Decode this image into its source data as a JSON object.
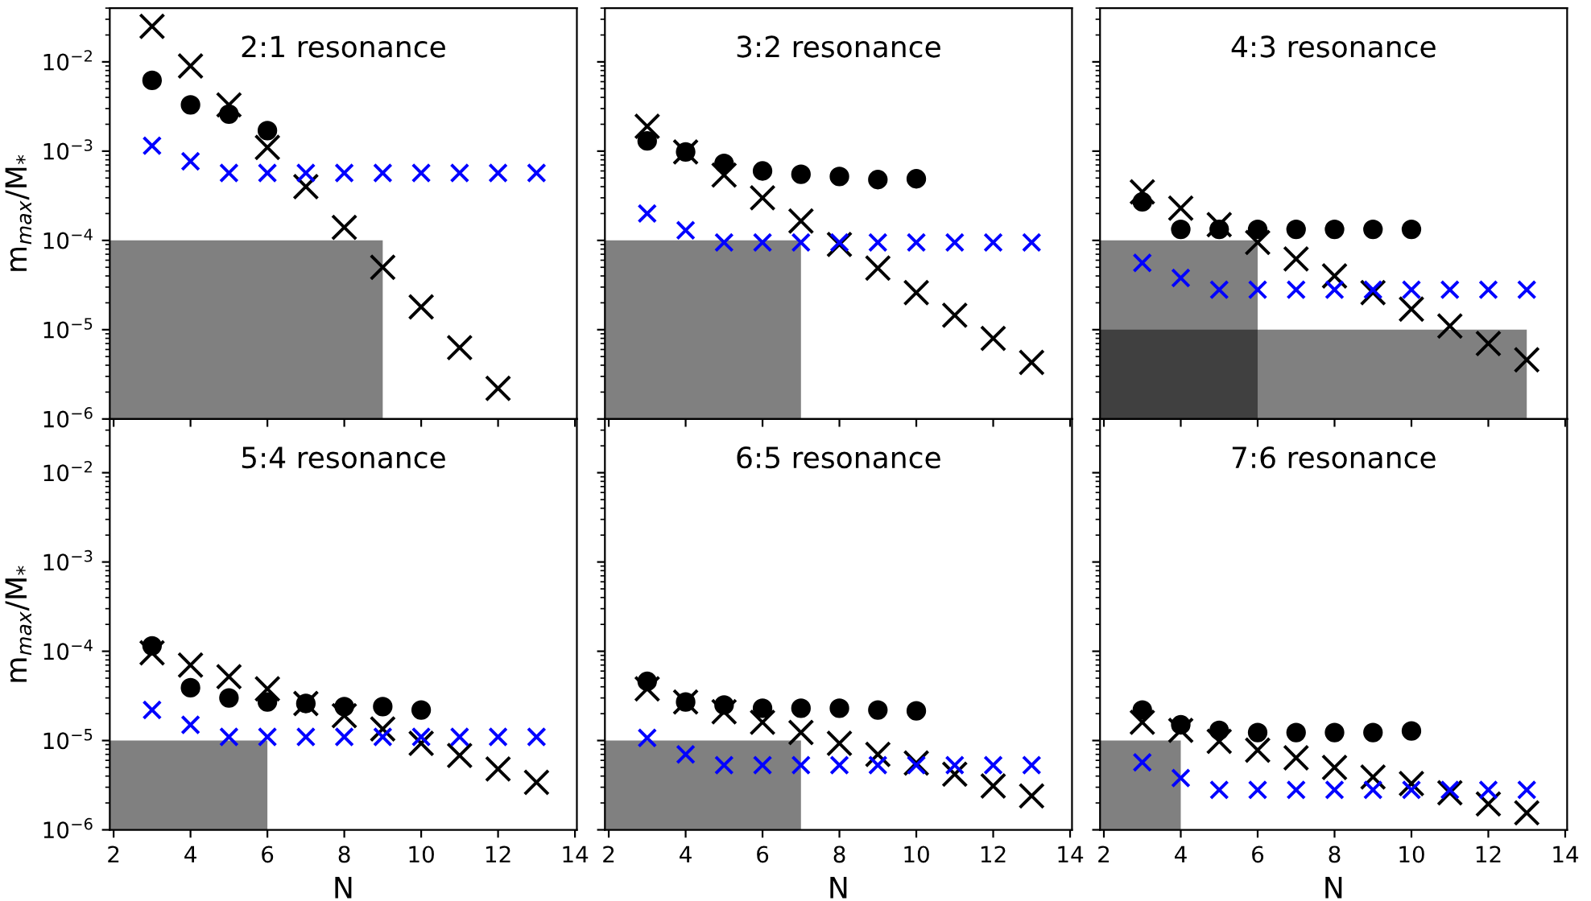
{
  "chart_data": [
    {
      "type": "scatter",
      "title": "2:1 resonance",
      "ylabel": "m$_{max}$/M$_{*}$",
      "log": "y",
      "xlim": [
        1.9,
        14.05
      ],
      "ylim": [
        1e-06,
        0.04
      ],
      "xticks": [
        {
          "value": 2,
          "label": null
        },
        {
          "value": 4,
          "label": null
        },
        {
          "value": 6,
          "label": null
        },
        {
          "value": 8,
          "label": null
        },
        {
          "value": 10,
          "label": null
        },
        {
          "value": 12,
          "label": null
        },
        {
          "value": 14,
          "label": null
        }
      ],
      "yticks": [
        {
          "value": 1e-06,
          "label": "10$^{−6}$"
        },
        {
          "value": 1e-05,
          "label": "10$^{−5}$"
        },
        {
          "value": 0.0001,
          "label": "10$^{−4}$"
        },
        {
          "value": 0.001,
          "label": "10$^{−3}$"
        },
        {
          "value": 0.01,
          "label": "10$^{−2}$"
        }
      ],
      "tick_labels": "y",
      "grid": false,
      "legend": false,
      "series": [
        {
          "type": "area",
          "color": "#808080",
          "x": [
            1.9,
            9
          ],
          "values": [
            0.0001,
            0.0001
          ]
        },
        {
          "type": "scatter",
          "marker": "circle",
          "color": "#000000",
          "x": [
            3,
            4,
            5,
            6
          ],
          "values": [
            0.0062,
            0.0033,
            0.0026,
            0.0017
          ]
        },
        {
          "type": "scatter",
          "marker": "cross",
          "color": "#000000",
          "x": [
            3,
            4,
            5,
            6,
            7,
            8,
            9,
            10,
            11,
            12
          ],
          "values": [
            0.025,
            0.009,
            0.0033,
            0.0011,
            0.0004,
            0.00014,
            5e-05,
            1.8e-05,
            6.3e-06,
            2.2e-06
          ]
        },
        {
          "type": "scatter",
          "marker": "cross",
          "color": "#0000ff",
          "x": [
            3,
            4,
            5,
            6,
            7,
            8,
            9,
            10,
            11,
            12,
            13
          ],
          "values": [
            0.00115,
            0.00077,
            0.00057,
            0.00057,
            0.00057,
            0.00057,
            0.00057,
            0.00057,
            0.00057,
            0.00057,
            0.00057
          ]
        }
      ]
    },
    {
      "type": "scatter",
      "title": "3:2 resonance",
      "log": "y",
      "xlim": [
        1.9,
        14.05
      ],
      "ylim": [
        1e-06,
        0.04
      ],
      "xticks": [
        {
          "value": 2,
          "label": null
        },
        {
          "value": 4,
          "label": null
        },
        {
          "value": 6,
          "label": null
        },
        {
          "value": 8,
          "label": null
        },
        {
          "value": 10,
          "label": null
        },
        {
          "value": 12,
          "label": null
        },
        {
          "value": 14,
          "label": null
        }
      ],
      "yticks": [
        {
          "value": 1e-06,
          "label": null
        },
        {
          "value": 1e-05,
          "label": null
        },
        {
          "value": 0.0001,
          "label": null
        },
        {
          "value": 0.001,
          "label": null
        },
        {
          "value": 0.01,
          "label": null
        }
      ],
      "tick_labels": false,
      "grid": false,
      "legend": false,
      "series": [
        {
          "type": "area",
          "color": "#808080",
          "x": [
            1.9,
            7
          ],
          "values": [
            0.0001,
            0.0001
          ]
        },
        {
          "type": "scatter",
          "marker": "circle",
          "color": "#000000",
          "x": [
            3,
            4,
            5,
            6,
            7,
            8,
            9,
            10
          ],
          "values": [
            0.0013,
            0.00098,
            0.00073,
            0.0006,
            0.00055,
            0.00052,
            0.00048,
            0.00049
          ]
        },
        {
          "type": "scatter",
          "marker": "cross",
          "color": "#000000",
          "x": [
            3,
            4,
            5,
            6,
            7,
            8,
            9,
            10,
            11,
            12,
            13
          ],
          "values": [
            0.0019,
            0.00098,
            0.00054,
            0.0003,
            0.000165,
            9e-05,
            4.9e-05,
            2.6e-05,
            1.45e-05,
            8e-06,
            4.3e-06
          ]
        },
        {
          "type": "scatter",
          "marker": "cross",
          "color": "#0000ff",
          "x": [
            3,
            4,
            5,
            6,
            7,
            8,
            9,
            10,
            11,
            12,
            13
          ],
          "values": [
            0.0002,
            0.00013,
            9.5e-05,
            9.5e-05,
            9.5e-05,
            9.5e-05,
            9.5e-05,
            9.5e-05,
            9.5e-05,
            9.5e-05,
            9.5e-05
          ]
        }
      ]
    },
    {
      "type": "scatter",
      "title": "4:3 resonance",
      "log": "y",
      "xlim": [
        1.9,
        14.05
      ],
      "ylim": [
        1e-06,
        0.04
      ],
      "xticks": [
        {
          "value": 2,
          "label": null
        },
        {
          "value": 4,
          "label": null
        },
        {
          "value": 6,
          "label": null
        },
        {
          "value": 8,
          "label": null
        },
        {
          "value": 10,
          "label": null
        },
        {
          "value": 12,
          "label": null
        },
        {
          "value": 14,
          "label": null
        }
      ],
      "yticks": [
        {
          "value": 1e-06,
          "label": null
        },
        {
          "value": 1e-05,
          "label": null
        },
        {
          "value": 0.0001,
          "label": null
        },
        {
          "value": 0.001,
          "label": null
        },
        {
          "value": 0.01,
          "label": null
        }
      ],
      "tick_labels": false,
      "grid": false,
      "legend": false,
      "series": [
        {
          "type": "area",
          "color": "#808080",
          "x": [
            1.9,
            6,
            6,
            13
          ],
          "values": [
            0.0001,
            0.0001,
            1e-05,
            1e-05
          ]
        },
        {
          "type": "area",
          "color": "#404040",
          "x": [
            1.9,
            6
          ],
          "values": [
            1e-05,
            1e-05
          ]
        },
        {
          "type": "scatter",
          "marker": "circle",
          "color": "#000000",
          "x": [
            3,
            4,
            5,
            6,
            7,
            8,
            9,
            10
          ],
          "values": [
            0.00027,
            0.000133,
            0.000133,
            0.000133,
            0.000133,
            0.000133,
            0.000133,
            0.000133
          ]
        },
        {
          "type": "scatter",
          "marker": "cross",
          "color": "#000000",
          "x": [
            3,
            4,
            5,
            6,
            7,
            8,
            9,
            10,
            11,
            12,
            13
          ],
          "values": [
            0.00035,
            0.00023,
            0.00015,
            9.5e-05,
            6.2e-05,
            4e-05,
            2.6e-05,
            1.7e-05,
            1.1e-05,
            7e-06,
            4.6e-06
          ]
        },
        {
          "type": "scatter",
          "marker": "cross",
          "color": "#0000ff",
          "x": [
            3,
            4,
            5,
            6,
            7,
            8,
            9,
            10,
            11,
            12,
            13
          ],
          "values": [
            5.6e-05,
            3.8e-05,
            2.8e-05,
            2.8e-05,
            2.8e-05,
            2.8e-05,
            2.8e-05,
            2.8e-05,
            2.8e-05,
            2.8e-05,
            2.8e-05
          ]
        }
      ]
    },
    {
      "type": "scatter",
      "title": "5:4 resonance",
      "xlabel": "N",
      "ylabel": "m$_{max}$/M$_{*}$",
      "log": "y",
      "xlim": [
        1.9,
        14.05
      ],
      "ylim": [
        1e-06,
        0.04
      ],
      "xticks": [
        2,
        4,
        6,
        8,
        10,
        12,
        14
      ],
      "yticks": [
        {
          "value": 1e-06,
          "label": "10$^{−6}$"
        },
        {
          "value": 1e-05,
          "label": "10$^{−5}$"
        },
        {
          "value": 0.0001,
          "label": "10$^{−4}$"
        },
        {
          "value": 0.001,
          "label": "10$^{−3}$"
        },
        {
          "value": 0.01,
          "label": "10$^{−2}$"
        }
      ],
      "grid": false,
      "legend": false,
      "series": [
        {
          "type": "area",
          "color": "#808080",
          "x": [
            1.9,
            6
          ],
          "values": [
            1e-05,
            1e-05
          ]
        },
        {
          "type": "scatter",
          "marker": "circle",
          "color": "#000000",
          "x": [
            3,
            4,
            5,
            6,
            7,
            8,
            9,
            10
          ],
          "values": [
            0.000115,
            3.9e-05,
            3e-05,
            2.7e-05,
            2.6e-05,
            2.4e-05,
            2.4e-05,
            2.2e-05
          ]
        },
        {
          "type": "scatter",
          "marker": "cross",
          "color": "#000000",
          "x": [
            3,
            4,
            5,
            6,
            7,
            8,
            9,
            10,
            11,
            12,
            13
          ],
          "values": [
            9.6e-05,
            7e-05,
            5.2e-05,
            3.8e-05,
            2.6e-05,
            1.9e-05,
            1.35e-05,
            9.3e-06,
            6.8e-06,
            4.8e-06,
            3.4e-06
          ]
        },
        {
          "type": "scatter",
          "marker": "cross",
          "color": "#0000ff",
          "x": [
            3,
            4,
            5,
            6,
            7,
            8,
            9,
            10,
            11,
            12,
            13
          ],
          "values": [
            2.2e-05,
            1.5e-05,
            1.1e-05,
            1.1e-05,
            1.1e-05,
            1.1e-05,
            1.1e-05,
            1.1e-05,
            1.1e-05,
            1.1e-05,
            1.1e-05
          ]
        }
      ]
    },
    {
      "type": "scatter",
      "title": "6:5 resonance",
      "xlabel": "N",
      "log": "y",
      "xlim": [
        1.9,
        14.05
      ],
      "ylim": [
        1e-06,
        0.04
      ],
      "xticks": [
        2,
        4,
        6,
        8,
        10,
        12,
        14
      ],
      "yticks": [
        {
          "value": 1e-06,
          "label": null
        },
        {
          "value": 1e-05,
          "label": null
        },
        {
          "value": 0.0001,
          "label": null
        },
        {
          "value": 0.001,
          "label": null
        },
        {
          "value": 0.01,
          "label": null
        }
      ],
      "tick_labels": "x",
      "grid": false,
      "legend": false,
      "series": [
        {
          "type": "area",
          "color": "#808080",
          "x": [
            1.9,
            7
          ],
          "values": [
            1e-05,
            1e-05
          ]
        },
        {
          "type": "scatter",
          "marker": "circle",
          "color": "#000000",
          "x": [
            3,
            4,
            5,
            6,
            7,
            8,
            9,
            10
          ],
          "values": [
            4.6e-05,
            2.7e-05,
            2.5e-05,
            2.3e-05,
            2.3e-05,
            2.3e-05,
            2.2e-05,
            2.15e-05
          ]
        },
        {
          "type": "scatter",
          "marker": "cross",
          "color": "#000000",
          "x": [
            3,
            4,
            5,
            6,
            7,
            8,
            9,
            10,
            11,
            12,
            13
          ],
          "values": [
            3.8e-05,
            2.7e-05,
            2.1e-05,
            1.6e-05,
            1.23e-05,
            9.3e-06,
            7e-06,
            5.6e-06,
            4.2e-06,
            3.1e-06,
            2.4e-06
          ]
        },
        {
          "type": "scatter",
          "marker": "cross",
          "color": "#0000ff",
          "x": [
            3,
            4,
            5,
            6,
            7,
            8,
            9,
            10,
            11,
            12,
            13
          ],
          "values": [
            1.07e-05,
            7e-06,
            5.3e-06,
            5.3e-06,
            5.3e-06,
            5.3e-06,
            5.3e-06,
            5.3e-06,
            5.3e-06,
            5.3e-06,
            5.3e-06
          ]
        }
      ]
    },
    {
      "type": "scatter",
      "title": "7:6 resonance",
      "xlabel": "N",
      "log": "y",
      "xlim": [
        1.9,
        14.05
      ],
      "ylim": [
        1e-06,
        0.04
      ],
      "xticks": [
        2,
        4,
        6,
        8,
        10,
        12,
        14
      ],
      "yticks": [
        {
          "value": 1e-06,
          "label": null
        },
        {
          "value": 1e-05,
          "label": null
        },
        {
          "value": 0.0001,
          "label": null
        },
        {
          "value": 0.001,
          "label": null
        },
        {
          "value": 0.01,
          "label": null
        }
      ],
      "tick_labels": "x",
      "grid": false,
      "legend": false,
      "series": [
        {
          "type": "area",
          "color": "#808080",
          "x": [
            1.9,
            4
          ],
          "values": [
            1e-05,
            1e-05
          ]
        },
        {
          "type": "scatter",
          "marker": "circle",
          "color": "#000000",
          "x": [
            3,
            4,
            5,
            6,
            7,
            8,
            9,
            10
          ],
          "values": [
            2.2e-05,
            1.5e-05,
            1.3e-05,
            1.23e-05,
            1.23e-05,
            1.23e-05,
            1.23e-05,
            1.28e-05
          ]
        },
        {
          "type": "scatter",
          "marker": "cross",
          "color": "#000000",
          "x": [
            3,
            4,
            5,
            6,
            7,
            8,
            9,
            10,
            11,
            12,
            13
          ],
          "values": [
            1.6e-05,
            1.3e-05,
            9.8e-06,
            7.8e-06,
            6.4e-06,
            5e-06,
            3.9e-06,
            3.3e-06,
            2.6e-06,
            1.95e-06,
            1.55e-06
          ]
        },
        {
          "type": "scatter",
          "marker": "cross",
          "color": "#0000ff",
          "x": [
            3,
            4,
            5,
            6,
            7,
            8,
            9,
            10,
            11,
            12,
            13
          ],
          "values": [
            5.7e-06,
            3.8e-06,
            2.8e-06,
            2.8e-06,
            2.8e-06,
            2.8e-06,
            2.8e-06,
            2.8e-06,
            2.8e-06,
            2.8e-06,
            2.8e-06
          ]
        }
      ]
    }
  ]
}
